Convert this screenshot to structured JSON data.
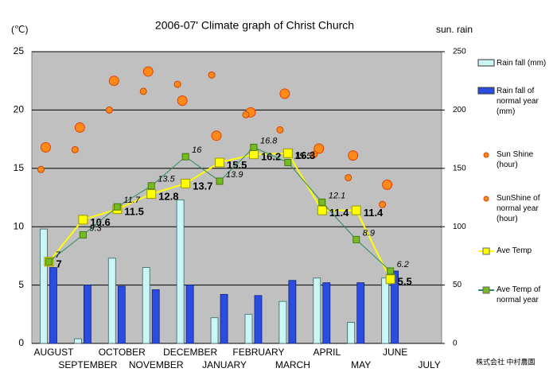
{
  "chart_data": {
    "type": "combo",
    "title": "2006-07' Climate graph of Christ Church",
    "y_unit": "(℃)",
    "y2_unit": "sun. rain",
    "logo_text": "株式会社 中村農園",
    "categories": [
      "AUGUST",
      "SEPTEMBER",
      "OCTOBER",
      "NOVEMBER",
      "DECEMBER",
      "JANUARY",
      "FEBRUARY",
      "MARCH",
      "APRIL",
      "MAY",
      "JUNE",
      "JULY"
    ],
    "ylim": [
      0,
      25
    ],
    "yticks": [
      0,
      5,
      10,
      15,
      20,
      25
    ],
    "y2lim": [
      0,
      250
    ],
    "y2ticks": [
      0,
      50,
      100,
      150,
      200,
      250
    ],
    "grid": true,
    "series": [
      {
        "name": "Rain fall (mm)",
        "type": "bar",
        "axis": "y2",
        "color": "#ccf5f5",
        "values": [
          98,
          4,
          73,
          65,
          123,
          22,
          25,
          36,
          56,
          18,
          56,
          null
        ]
      },
      {
        "name": "Rain fall of normal year (mm)",
        "type": "bar",
        "axis": "y2",
        "color": "#2a4de0",
        "values": [
          65,
          50,
          49,
          46,
          50,
          42,
          41,
          54,
          52,
          52,
          62,
          null
        ]
      },
      {
        "name": "Sun Shine (hour)",
        "type": "dot",
        "axis": "y2",
        "color": "#ff8a1a",
        "values": [
          168,
          185,
          225,
          233,
          208,
          178,
          198,
          214,
          167,
          161,
          136,
          null
        ]
      },
      {
        "name": "SunShine of normal year (hour)",
        "type": "smalldot",
        "axis": "y2",
        "color": "#ff8a1a",
        "values": [
          149,
          166,
          200,
          216,
          222,
          230,
          196,
          183,
          162,
          142,
          119,
          null
        ]
      },
      {
        "name": "Ave Temp",
        "type": "line",
        "color": "#ffff00",
        "values": [
          7,
          10.6,
          11.5,
          12.8,
          13.7,
          15.5,
          16.2,
          16.3,
          11.4,
          11.4,
          5.5,
          null
        ]
      },
      {
        "name": "Ave Temp of normal year",
        "type": "line2",
        "color": "#77bb22",
        "values": [
          7,
          9.3,
          11.7,
          13.5,
          16,
          13.9,
          16.8,
          15.5,
          12.1,
          8.9,
          6.2,
          null
        ]
      }
    ]
  }
}
